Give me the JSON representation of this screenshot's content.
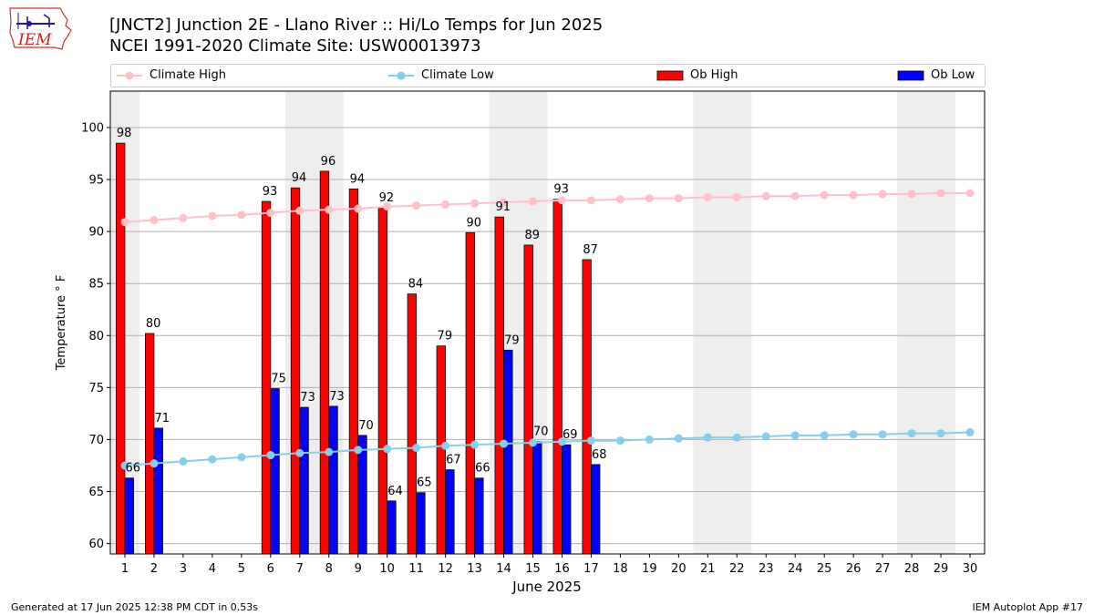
{
  "header": {
    "title_line1": "[JNCT2] Junction 2E - Llano River :: Hi/Lo Temps for Jun 2025",
    "title_line2": "NCEI 1991-2020 Climate Site: USW00013973",
    "logo_text": "IEM"
  },
  "footer": {
    "left": "Generated at 17 Jun 2025 12:38 PM CDT in 0.53s",
    "right": "IEM Autoplot App #17"
  },
  "colors": {
    "climate_high": "#ffc0cb",
    "climate_low": "#87ceeb",
    "ob_high": "#ff0000",
    "ob_low": "#0000ff",
    "weekend_band": "#eeeeee",
    "grid": "#b0b0b0"
  },
  "chart_data": {
    "type": "bar",
    "xlabel": "June 2025",
    "ylabel": "Temperature ° F",
    "xlim": [
      0.5,
      30.5
    ],
    "ylim": [
      59,
      103.5
    ],
    "yticks": [
      60,
      65,
      70,
      75,
      80,
      85,
      90,
      95,
      100
    ],
    "grid": "horizontal",
    "legend_placement": "top",
    "days": [
      1,
      2,
      3,
      4,
      5,
      6,
      7,
      8,
      9,
      10,
      11,
      12,
      13,
      14,
      15,
      16,
      17,
      18,
      19,
      20,
      21,
      22,
      23,
      24,
      25,
      26,
      27,
      28,
      29,
      30
    ],
    "weekend_bands": [
      [
        0.5,
        1.5
      ],
      [
        6.5,
        8.5
      ],
      [
        13.5,
        15.5
      ],
      [
        20.5,
        22.5
      ],
      [
        27.5,
        29.5
      ]
    ],
    "series": [
      {
        "name": "Climate High",
        "kind": "line",
        "values": [
          90.9,
          91.1,
          91.3,
          91.5,
          91.6,
          91.8,
          92.0,
          92.1,
          92.2,
          92.4,
          92.5,
          92.6,
          92.7,
          92.8,
          92.9,
          93.0,
          93.0,
          93.1,
          93.2,
          93.2,
          93.3,
          93.3,
          93.4,
          93.4,
          93.5,
          93.5,
          93.6,
          93.6,
          93.7,
          93.7
        ]
      },
      {
        "name": "Climate Low",
        "kind": "line",
        "values": [
          67.5,
          67.7,
          67.9,
          68.1,
          68.3,
          68.5,
          68.7,
          68.8,
          69.0,
          69.1,
          69.2,
          69.4,
          69.5,
          69.6,
          69.7,
          69.8,
          69.9,
          69.9,
          70.0,
          70.1,
          70.2,
          70.2,
          70.3,
          70.4,
          70.4,
          70.5,
          70.5,
          70.6,
          70.6,
          70.7
        ]
      },
      {
        "name": "Ob High",
        "kind": "bar",
        "values": [
          98.5,
          80.2,
          null,
          null,
          null,
          92.9,
          94.2,
          95.8,
          94.1,
          92.3,
          84.0,
          79.0,
          89.9,
          91.4,
          88.7,
          93.1,
          87.3,
          null,
          null,
          null,
          null,
          null,
          null,
          null,
          null,
          null,
          null,
          null,
          null,
          null
        ],
        "labels": [
          "98",
          "80",
          "",
          "",
          "",
          "93",
          "94",
          "96",
          "94",
          "92",
          "84",
          "79",
          "90",
          "91",
          "89",
          "93",
          "87",
          "",
          "",
          "",
          "",
          "",
          "",
          "",
          "",
          "",
          "",
          "",
          "",
          ""
        ]
      },
      {
        "name": "Ob Low",
        "kind": "bar",
        "values": [
          66.3,
          71.1,
          null,
          null,
          null,
          74.9,
          73.1,
          73.2,
          70.4,
          64.1,
          64.9,
          67.1,
          66.3,
          78.6,
          69.8,
          69.5,
          67.6,
          null,
          null,
          null,
          null,
          null,
          null,
          null,
          null,
          null,
          null,
          null,
          null,
          null
        ],
        "labels": [
          "66",
          "71",
          "",
          "",
          "",
          "75",
          "73",
          "73",
          "70",
          "64",
          "65",
          "67",
          "66",
          "79",
          "70",
          "69",
          "68",
          "",
          "",
          "",
          "",
          "",
          "",
          "",
          "",
          "",
          "",
          "",
          "",
          ""
        ]
      }
    ]
  }
}
